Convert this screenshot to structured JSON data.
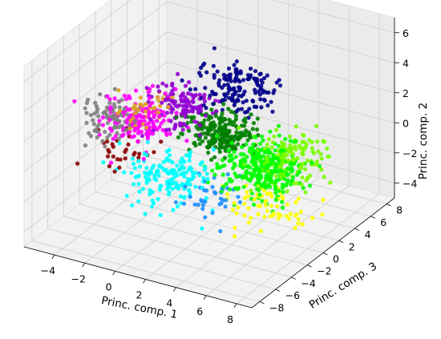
{
  "chart_data": {
    "type": "scatter",
    "projection": "3d",
    "title": "",
    "xlabel": "Princ. comp. 1",
    "ylabel": "Princ. comp. 3",
    "zlabel": "Princ. comp. 2",
    "xlim": [
      -6,
      9
    ],
    "ylim": [
      -9,
      9
    ],
    "zlim": [
      -5,
      7
    ],
    "xticks": [
      "−4",
      "−2",
      "0",
      "2",
      "4",
      "6",
      "8"
    ],
    "yticks": [
      "−8",
      "−6",
      "−4",
      "−2",
      "0",
      "2",
      "4",
      "6",
      "8"
    ],
    "zticks": [
      "−4",
      "−2",
      "0",
      "2",
      "4",
      "6"
    ],
    "grid": true,
    "legend": "none",
    "clusters": [
      {
        "color": "#808080",
        "center": [
          -4.0,
          -2.0,
          1.2
        ],
        "spread": [
          0.8,
          1.0,
          0.6
        ],
        "count": 90
      },
      {
        "color": "#ff00ff",
        "center": [
          -2.5,
          -1.0,
          1.2
        ],
        "spread": [
          1.0,
          1.2,
          0.7
        ],
        "count": 160
      },
      {
        "color": "#daa520",
        "center": [
          -2.5,
          -1.0,
          1.8
        ],
        "spread": [
          0.8,
          1.0,
          0.5
        ],
        "count": 40
      },
      {
        "color": "#8b0000",
        "center": [
          -3.0,
          -2.0,
          -0.5
        ],
        "spread": [
          0.8,
          1.0,
          0.5
        ],
        "count": 30
      },
      {
        "color": "#9400d3",
        "center": [
          -0.5,
          0.5,
          2.0
        ],
        "spread": [
          1.0,
          1.0,
          0.6
        ],
        "count": 120
      },
      {
        "color": "#00008b",
        "center": [
          2.0,
          2.5,
          3.0
        ],
        "spread": [
          1.2,
          1.0,
          0.8
        ],
        "count": 150
      },
      {
        "color": "#00ffff",
        "center": [
          0.5,
          -3.0,
          -1.0
        ],
        "spread": [
          1.2,
          1.2,
          0.7
        ],
        "count": 170
      },
      {
        "color": "#007f00",
        "center": [
          2.0,
          0.5,
          0.8
        ],
        "spread": [
          0.9,
          0.8,
          0.6
        ],
        "count": 230
      },
      {
        "color": "#00ff00",
        "center": [
          5.0,
          0.0,
          -0.5
        ],
        "spread": [
          1.2,
          1.3,
          0.8
        ],
        "count": 300
      },
      {
        "color": "#7cfc00",
        "center": [
          6.0,
          1.5,
          -0.2
        ],
        "spread": [
          1.0,
          1.2,
          0.7
        ],
        "count": 150
      },
      {
        "color": "#ffff00",
        "center": [
          6.0,
          -1.0,
          -2.5
        ],
        "spread": [
          1.2,
          1.2,
          0.6
        ],
        "count": 70
      },
      {
        "color": "#1e90ff",
        "center": [
          2.5,
          -2.5,
          -2.0
        ],
        "spread": [
          1.2,
          1.0,
          0.6
        ],
        "count": 40
      }
    ]
  }
}
